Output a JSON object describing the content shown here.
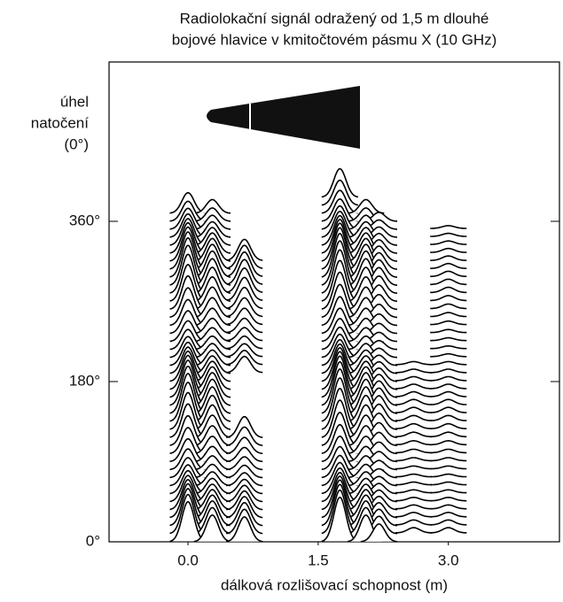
{
  "chart_data": {
    "type": "waterfall",
    "title": [
      "Radiolokační signál odražený od 1,5 m dlouhé",
      "bojové hlavice v kmitočtovém pásmu X (10 GHz)"
    ],
    "ylabel": [
      "úhel",
      "natočení",
      "(0°)"
    ],
    "xlabel": "dálková rozlišovací schopnost (m)",
    "xlim": [
      -0.91,
      4.28
    ],
    "xticks": [
      {
        "value": 0,
        "label": "0.0"
      },
      1.5,
      {
        "value": 3,
        "label": "3.0"
      }
    ],
    "ylim": [
      0,
      539
    ],
    "yticks": [
      {
        "value": 0,
        "label": "0°"
      },
      {
        "value": 180,
        "label": "180°"
      },
      {
        "value": 360,
        "label": "360°"
      }
    ],
    "color": "#000000",
    "scatterers": [
      {
        "x": 0.0,
        "amplitude": 45,
        "angles": [
          0,
          370
        ]
      },
      {
        "x": 0.28,
        "amplitude": 30,
        "angles": [
          0,
          370
        ]
      },
      {
        "x": 0.65,
        "amplitude": 28,
        "angles": [
          0,
          120
        ]
      },
      {
        "x": 0.65,
        "amplitude": 28,
        "angles": [
          190,
          320
        ]
      },
      {
        "x": 1.75,
        "amplitude": 50,
        "angles": [
          0,
          390
        ]
      },
      {
        "x": 2.05,
        "amplitude": 30,
        "angles": [
          0,
          370
        ]
      },
      {
        "x": 2.2,
        "amplitude": 20,
        "angles": [
          0,
          360
        ]
      },
      {
        "x": 2.6,
        "amplitude": 6,
        "angles": [
          10,
          200
        ]
      },
      {
        "x": 3.0,
        "amplitude": 6,
        "angles": [
          10,
          360
        ]
      }
    ]
  }
}
